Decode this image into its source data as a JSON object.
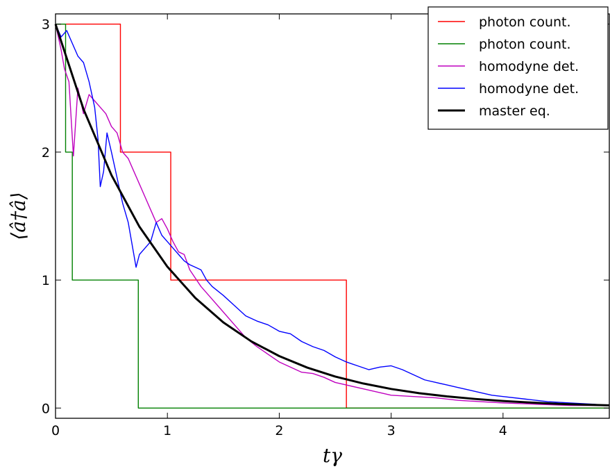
{
  "chart_data": {
    "type": "line",
    "xlabel": "tγ",
    "ylabel": "⟨â†â⟩",
    "xlim": [
      0,
      4.95
    ],
    "ylim": [
      -0.08,
      3.08
    ],
    "x_ticks": [
      "0",
      "1",
      "2",
      "3",
      "4"
    ],
    "y_ticks": [
      "0",
      "1",
      "2",
      "3"
    ],
    "grid": false,
    "legend_position": "top-right",
    "series": [
      {
        "name": "photon count.",
        "color": "#ff0000",
        "style": "step",
        "x": [
          0,
          0.58,
          0.58,
          1.03,
          1.03,
          2.6,
          2.6,
          4.95
        ],
        "y": [
          3,
          3,
          2,
          2,
          1,
          1,
          0,
          0
        ]
      },
      {
        "name": "photon count.",
        "color": "#008000",
        "style": "step",
        "x": [
          0,
          0.09,
          0.09,
          0.15,
          0.15,
          0.74,
          0.74,
          4.95
        ],
        "y": [
          3,
          3,
          2,
          2,
          1,
          1,
          0,
          0
        ]
      },
      {
        "name": "homodyne det.",
        "color": "#bf00bf",
        "style": "line",
        "x": [
          0,
          0.05,
          0.08,
          0.12,
          0.16,
          0.2,
          0.25,
          0.3,
          0.35,
          0.4,
          0.45,
          0.5,
          0.55,
          0.6,
          0.65,
          0.7,
          0.75,
          0.8,
          0.85,
          0.9,
          0.95,
          1.0,
          1.05,
          1.1,
          1.15,
          1.2,
          1.3,
          1.4,
          1.5,
          1.6,
          1.7,
          1.8,
          1.9,
          2.0,
          2.1,
          2.2,
          2.3,
          2.4,
          2.5,
          2.6,
          2.8,
          3.0,
          3.2,
          3.4,
          3.6,
          3.8,
          4.0,
          4.3,
          4.6,
          4.95
        ],
        "y": [
          3.0,
          2.8,
          2.65,
          2.55,
          1.97,
          2.5,
          2.3,
          2.45,
          2.4,
          2.35,
          2.3,
          2.2,
          2.15,
          2.0,
          1.95,
          1.85,
          1.75,
          1.65,
          1.55,
          1.45,
          1.48,
          1.4,
          1.3,
          1.22,
          1.2,
          1.08,
          0.95,
          0.85,
          0.75,
          0.65,
          0.55,
          0.48,
          0.42,
          0.36,
          0.32,
          0.28,
          0.27,
          0.24,
          0.2,
          0.18,
          0.14,
          0.1,
          0.09,
          0.08,
          0.06,
          0.05,
          0.04,
          0.03,
          0.02,
          0.02
        ]
      },
      {
        "name": "homodyne det.",
        "color": "#0000ff",
        "style": "line",
        "x": [
          0,
          0.05,
          0.1,
          0.15,
          0.2,
          0.25,
          0.3,
          0.35,
          0.38,
          0.4,
          0.43,
          0.46,
          0.5,
          0.55,
          0.6,
          0.65,
          0.7,
          0.72,
          0.75,
          0.8,
          0.85,
          0.9,
          0.95,
          1.0,
          1.05,
          1.1,
          1.15,
          1.2,
          1.25,
          1.3,
          1.35,
          1.4,
          1.5,
          1.6,
          1.7,
          1.8,
          1.9,
          2.0,
          2.1,
          2.2,
          2.3,
          2.4,
          2.5,
          2.6,
          2.7,
          2.8,
          2.9,
          3.0,
          3.1,
          3.2,
          3.3,
          3.4,
          3.5,
          3.6,
          3.7,
          3.8,
          3.9,
          4.0,
          4.2,
          4.4,
          4.6,
          4.8,
          4.95
        ],
        "y": [
          3.0,
          2.9,
          2.95,
          2.85,
          2.75,
          2.7,
          2.55,
          2.35,
          2.1,
          1.73,
          1.85,
          2.15,
          2.0,
          1.8,
          1.6,
          1.45,
          1.2,
          1.1,
          1.2,
          1.25,
          1.3,
          1.45,
          1.35,
          1.3,
          1.25,
          1.2,
          1.15,
          1.12,
          1.1,
          1.08,
          1.0,
          0.95,
          0.88,
          0.8,
          0.72,
          0.68,
          0.65,
          0.6,
          0.58,
          0.52,
          0.48,
          0.45,
          0.4,
          0.36,
          0.33,
          0.3,
          0.32,
          0.33,
          0.3,
          0.26,
          0.22,
          0.2,
          0.18,
          0.16,
          0.14,
          0.12,
          0.1,
          0.09,
          0.07,
          0.05,
          0.04,
          0.03,
          0.02
        ]
      },
      {
        "name": "master eq.",
        "color": "#000000",
        "style": "exp-decay",
        "x": [
          0,
          0.25,
          0.5,
          0.75,
          1.0,
          1.25,
          1.5,
          1.75,
          2.0,
          2.25,
          2.5,
          2.75,
          3.0,
          3.25,
          3.5,
          3.75,
          4.0,
          4.25,
          4.5,
          4.75,
          4.95
        ],
        "y": [
          3.0,
          2.336,
          1.82,
          1.417,
          1.104,
          0.86,
          0.669,
          0.521,
          0.406,
          0.316,
          0.246,
          0.192,
          0.149,
          0.116,
          0.091,
          0.071,
          0.055,
          0.043,
          0.033,
          0.026,
          0.021
        ]
      }
    ]
  }
}
